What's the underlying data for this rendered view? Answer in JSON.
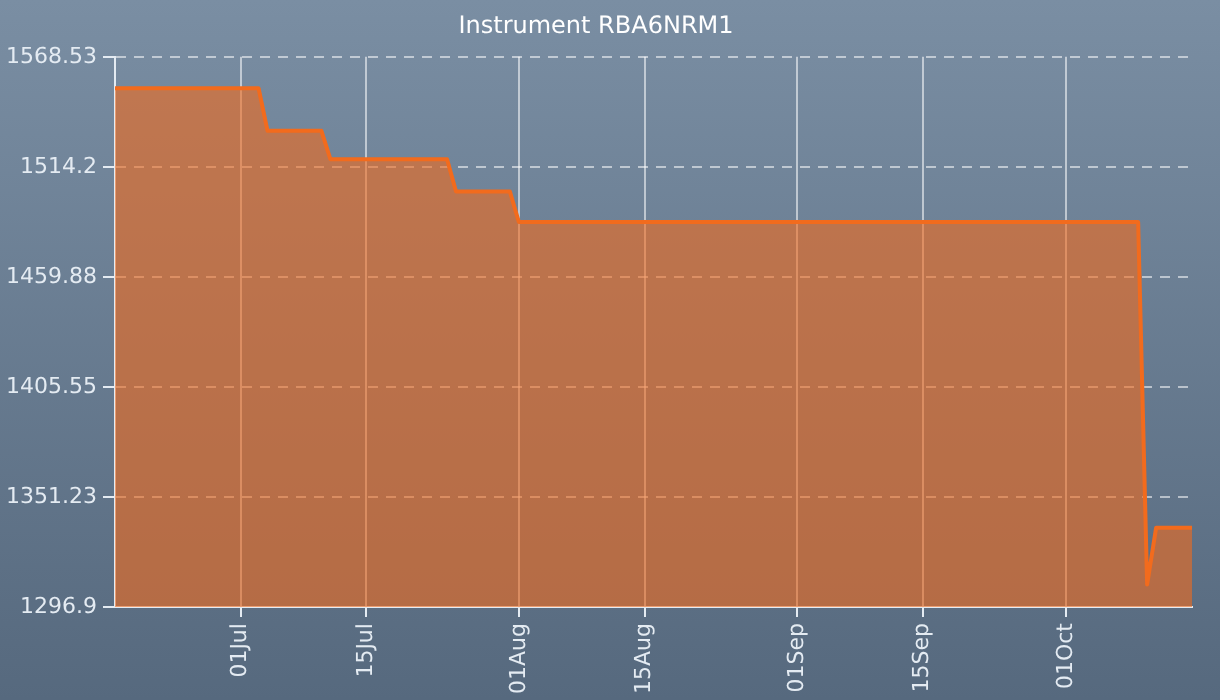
{
  "chart_data": {
    "type": "area",
    "title": "Instrument RBA6NRM1",
    "x": [
      "--06-17",
      "--07-03",
      "--07-04",
      "--07-10",
      "--07-11",
      "--07-24",
      "--07-25",
      "--07-31",
      "--08-01",
      "--10-09",
      "--10-10",
      "--10-11",
      "--10-15"
    ],
    "series": [
      {
        "color": "#f26b1d",
        "values": [
          1553,
          1553,
          1532,
          1532,
          1518,
          1518,
          1502,
          1502,
          1487,
          1487,
          1308,
          1336,
          1336
        ]
      }
    ],
    "xlim": [
      "--06-17",
      "--10-15"
    ],
    "xticks": [
      {
        "value": "--07-01",
        "label": "01Jul"
      },
      {
        "value": "--07-15",
        "label": "15Jul"
      },
      {
        "value": "--08-01",
        "label": "01Aug"
      },
      {
        "value": "--08-15",
        "label": "15Aug"
      },
      {
        "value": "--09-01",
        "label": "01Sep"
      },
      {
        "value": "--09-15",
        "label": "15Sep"
      },
      {
        "value": "--10-01",
        "label": "01Oct"
      }
    ],
    "ylim": [
      1296.9,
      1568.53
    ],
    "yticks": [
      1296.9,
      1351.23,
      1405.55,
      1459.88,
      1514.2,
      1568.53
    ],
    "grid": true,
    "legend": false
  }
}
